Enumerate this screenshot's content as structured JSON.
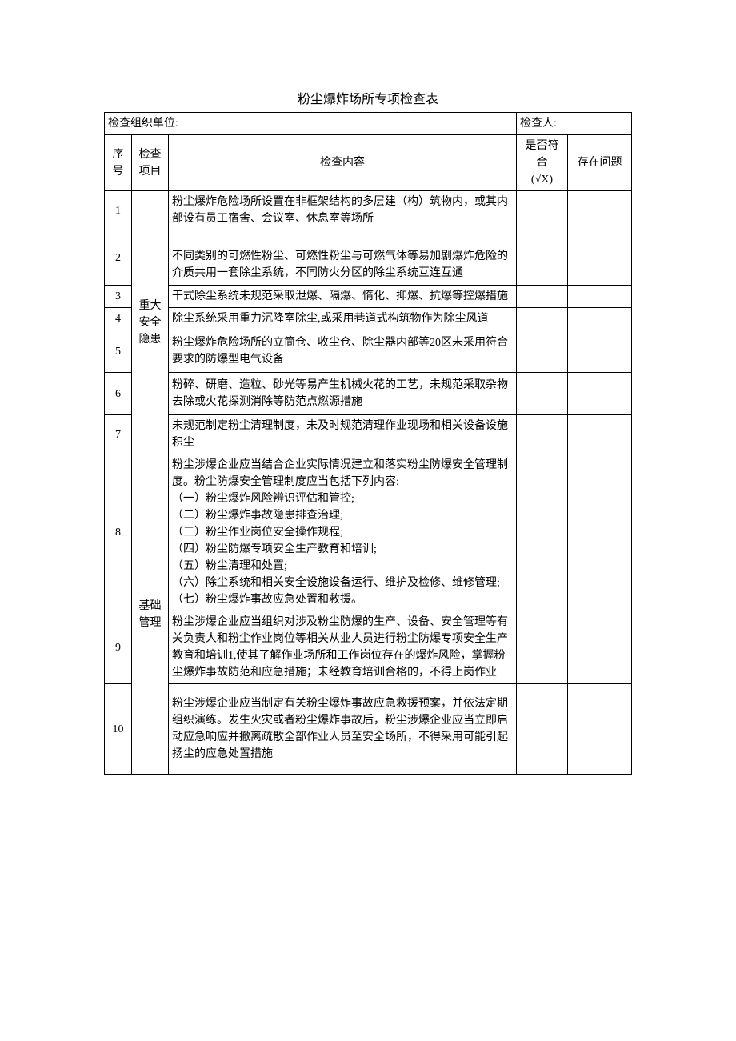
{
  "title": "粉尘爆炸场所专项检查表",
  "header_row": {
    "org_label": "检查组织单位:",
    "inspector_label": "检查人:"
  },
  "columns": {
    "seq": "序号",
    "item": "检查项目",
    "content": "检查内容",
    "compliance_line1": "是否符合",
    "compliance_line2": "(√X)",
    "issue": "存在问题"
  },
  "groups": [
    {
      "item_label": "重大安全隐患",
      "rows": [
        {
          "seq": "1",
          "content": "粉尘爆炸危险场所设置在非框架结构的多层建（构）筑物内，或其内部设有员工宿舍、会议室、休息室等场所"
        },
        {
          "seq": "2",
          "content": "不同类别的可燃性粉尘、可燃性粉尘与可燃气体等易加剧爆炸危险的介质共用一套除尘系统，不同防火分区的除尘系统互连互通"
        },
        {
          "seq": "3",
          "content": "干式除尘系统未规范采取泄爆、隔爆、惰化、抑爆、抗爆等控爆措施"
        },
        {
          "seq": "4",
          "content": "除尘系统采用重力沉降室除尘,或采用巷道式构筑物作为除尘风道"
        },
        {
          "seq": "5",
          "content": "粉尘爆炸危险场所的立筒仓、收尘仓、除尘器内部等20区未采用符合要求的防爆型电气设备"
        },
        {
          "seq": "6",
          "content": "粉碎、研磨、造粒、砂光等易产生机械火花的工艺，未规范采取杂物去除或火花探测消除等防范点燃源措施"
        },
        {
          "seq": "7",
          "content": "未规范制定粉尘清理制度，未及时规范清理作业现场和相关设备设施积尘"
        }
      ]
    },
    {
      "item_label": "基础管理",
      "rows": [
        {
          "seq": "8",
          "content": "粉尘涉爆企业应当结合企业实际情况建立和落实粉尘防爆安全管理制度。粉尘防爆安全管理制度应当包括下列内容:\n（一）粉尘爆炸风险辨识评估和管控;\n（二）粉尘爆炸事故隐患排查治理;\n（三）粉尘作业岗位安全操作规程;\n（四）粉尘防爆专项安全生产教育和培训;\n（五）粉尘清理和处置;\n（六）除尘系统和相关安全设施设备运行、维护及检修、维修管理;\n（七）粉尘爆炸事故应急处置和救援。"
        },
        {
          "seq": "9",
          "content": "粉尘涉爆企业应当组织对涉及粉尘防爆的生产、设备、安全管理等有关负责人和粉尘作业岗位等相关从业人员进行粉尘防爆专项安全生产教育和培训1,使其了解作业场所和工作岗位存在的爆炸风险，掌握粉尘爆炸事故防范和应急措施；未经教育培训合格的，不得上岗作业"
        },
        {
          "seq": "10",
          "content": "粉尘涉爆企业应当制定有关粉尘爆炸事故应急救援预案，并依法定期组织演练。发生火灾或者粉尘爆炸事故后，粉尘涉爆企业应当立即启动应急响应并撤离疏散全部作业人员至安全场所，不得采用可能引起扬尘的应急处置措施"
        }
      ]
    }
  ]
}
